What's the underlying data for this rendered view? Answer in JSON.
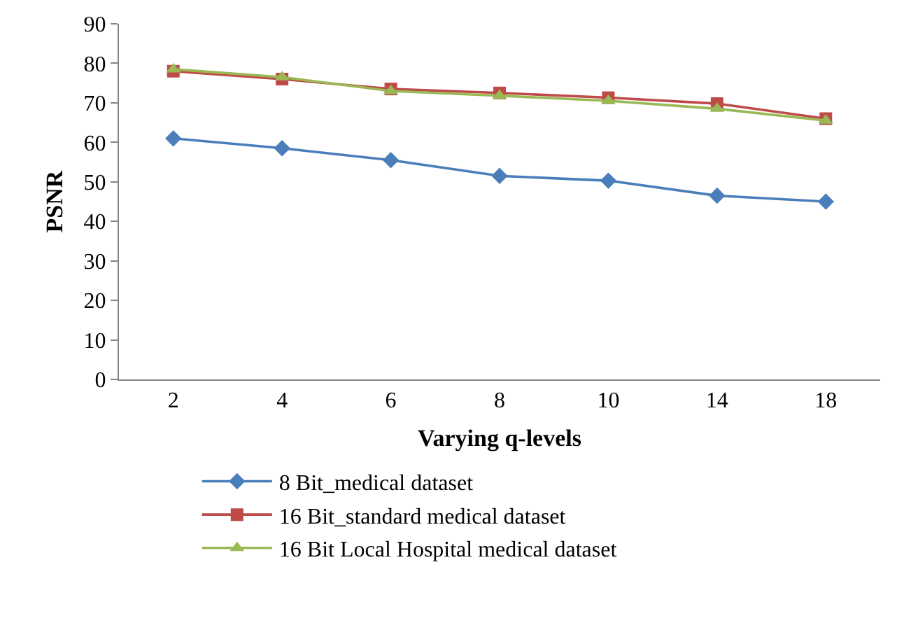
{
  "chart_data": {
    "type": "line",
    "xlabel": "Varying q-levels",
    "ylabel": "PSNR",
    "categories": [
      "2",
      "4",
      "6",
      "8",
      "10",
      "14",
      "18"
    ],
    "ylim": [
      0,
      90
    ],
    "yticks": [
      0,
      10,
      20,
      30,
      40,
      50,
      60,
      70,
      80,
      90
    ],
    "grid": false,
    "legend": "bottom",
    "line_style": "solid",
    "series": [
      {
        "name": "8 Bit_medical dataset",
        "color": "#4a7ebb",
        "marker": "diamond",
        "values": [
          61,
          58.5,
          55.5,
          51.5,
          50.3,
          46.5,
          45
        ]
      },
      {
        "name": "16 Bit_standard medical dataset",
        "color": "#be4b48",
        "marker": "square",
        "values": [
          78,
          76,
          73.5,
          72.5,
          71.3,
          69.8,
          66
        ]
      },
      {
        "name": "16 Bit Local Hospital medical dataset",
        "color": "#98b954",
        "marker": "triangle",
        "values": [
          78.5,
          76.5,
          73,
          71.8,
          70.5,
          68.5,
          65.5
        ]
      }
    ]
  }
}
